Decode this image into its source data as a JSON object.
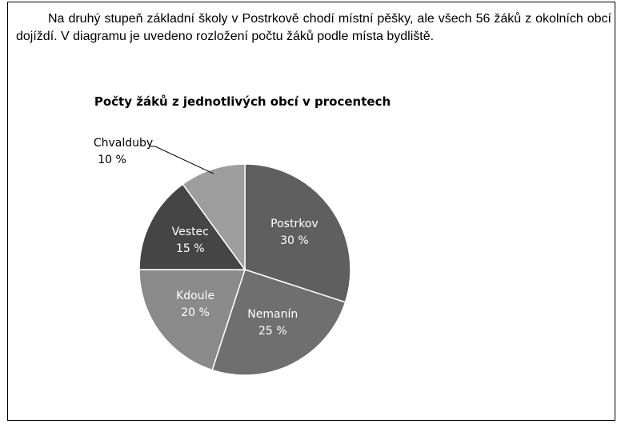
{
  "intro_text": "Na druhý stupeň základní školy v Postrkově chodí místní pěšky, ale všech 56 žáků z okolních obcí dojíždí. V diagramu je uvedeno rozložení počtu žáků podle místa bydliště.",
  "chart_data": {
    "type": "pie",
    "title": "Počty žáků z jednotlivých obcí v procentech",
    "slices": [
      {
        "name": "Postrkov",
        "value": 30,
        "label": "30 %",
        "color": "#5f5f5f",
        "text_color": "#ffffff"
      },
      {
        "name": "Nemanín",
        "value": 25,
        "label": "25 %",
        "color": "#6f6f6f",
        "text_color": "#ffffff"
      },
      {
        "name": "Kdoule",
        "value": 20,
        "label": "20 %",
        "color": "#8a8a8a",
        "text_color": "#ffffff"
      },
      {
        "name": "Vestec",
        "value": 15,
        "label": "15 %",
        "color": "#454545",
        "text_color": "#ffffff"
      },
      {
        "name": "Chvalduby",
        "value": 10,
        "label": "10 %",
        "color": "#9d9d9d",
        "text_color": "#000000"
      }
    ],
    "start": "top",
    "direction": "clockwise"
  }
}
